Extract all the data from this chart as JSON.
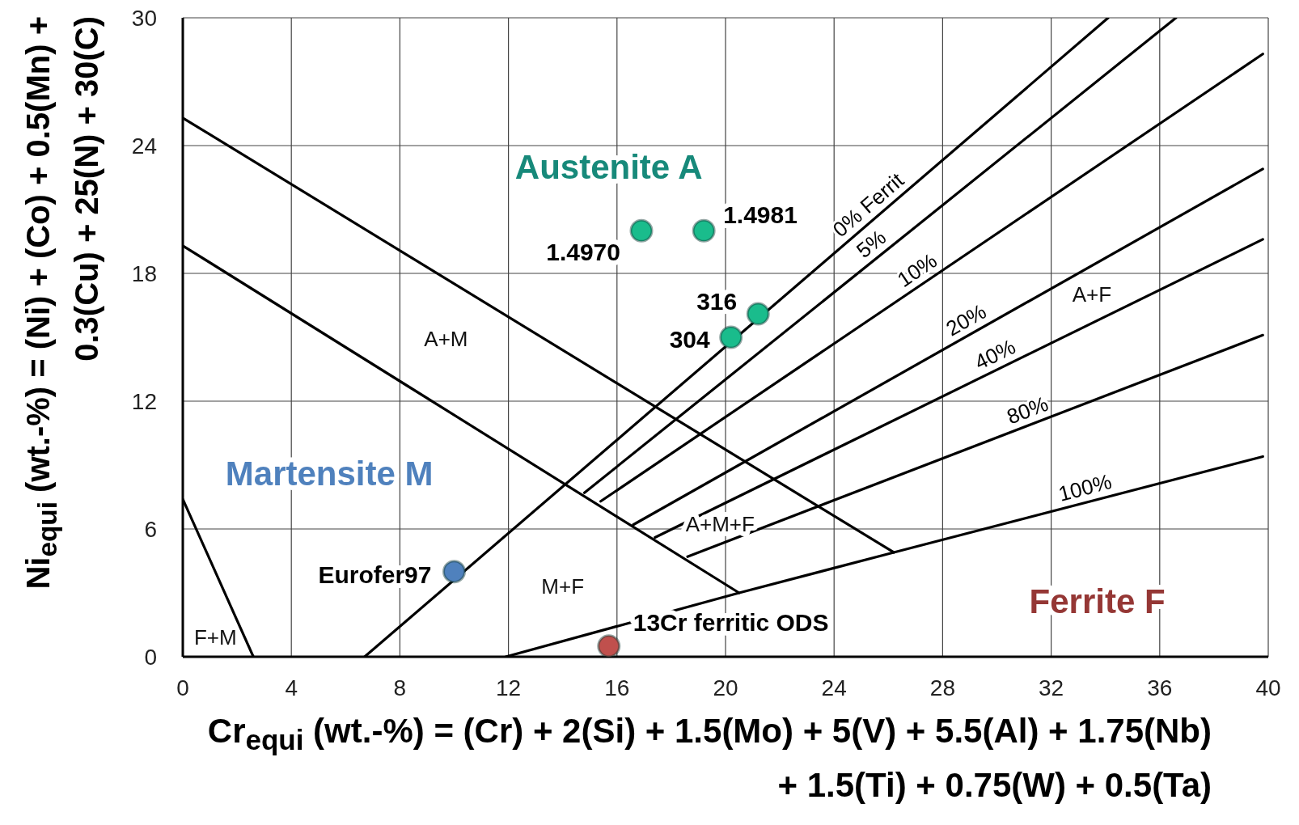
{
  "chart_data": {
    "type": "line",
    "xlabel": "Cr$_{equi}$ (wt.-%) =  (Cr) + 2(Si) + 1.5(Mo) + 5(V) + 5.5(Al) + 1.75(Nb) + 1.5(Ti) + 0.75(W) + 0.5(Ta)",
    "ylabel": "Ni$_{equi}$ (wt.-%) =  (Ni) + (Co) + 0.5(Mn) + 0.3(Cu) + 25(N) + 30(C)",
    "xlim": [
      0,
      40
    ],
    "xticks": [
      0,
      4,
      8,
      12,
      16,
      20,
      24,
      28,
      32,
      36,
      40
    ],
    "ylim": [
      0,
      30
    ],
    "yticks": [
      0,
      6,
      12,
      18,
      24,
      30
    ],
    "grid": true,
    "marker": "none",
    "line_style": "solid",
    "series": [
      {
        "color": "#000000",
        "x": [
          0,
          26.2
        ],
        "values": [
          25.3,
          4.9
        ]
      },
      {
        "color": "#000000",
        "x": [
          0,
          20.5
        ],
        "values": [
          19.3,
          3.0
        ]
      },
      {
        "color": "#000000",
        "x": [
          0,
          2.6
        ],
        "values": [
          7.4,
          0
        ]
      },
      {
        "name": "0% Ferrit",
        "color": "#000000",
        "x": [
          6.7,
          34.1
        ],
        "values": [
          0,
          30
        ]
      },
      {
        "name": "5%",
        "color": "#000000",
        "x": [
          14.8,
          36.6
        ],
        "values": [
          7.7,
          30
        ]
      },
      {
        "name": "10%",
        "color": "#000000",
        "x": [
          15.4,
          39.8
        ],
        "values": [
          7.3,
          28.3
        ]
      },
      {
        "name": "20%",
        "color": "#000000",
        "x": [
          16.6,
          39.8
        ],
        "values": [
          6.2,
          22.9
        ]
      },
      {
        "name": "40%",
        "color": "#000000",
        "x": [
          17.4,
          39.8
        ],
        "values": [
          5.6,
          19.6
        ]
      },
      {
        "name": "80%",
        "color": "#000000",
        "x": [
          18.6,
          39.8
        ],
        "values": [
          4.7,
          15.1
        ]
      },
      {
        "name": "100%",
        "color": "#000000",
        "x": [
          11.9,
          20.5,
          26.2,
          39.8
        ],
        "values": [
          0,
          3.0,
          4.9,
          9.4
        ]
      },
      {
        "type": "scatter",
        "marker": "circle",
        "x": [
          16.9,
          19.2,
          21.2,
          20.2,
          10.0,
          15.7
        ],
        "values": [
          20.0,
          20.0,
          16.1,
          15.0,
          4.0,
          0.5
        ],
        "colors": [
          "#1abc8c",
          "#1abc8c",
          "#1abc8c",
          "#1abc8c",
          "#4f81bd",
          "#c0504d"
        ]
      }
    ],
    "annotations": [
      {
        "text": "1.4970",
        "x": 16.9,
        "y": 20.0
      },
      {
        "text": "1.4981",
        "x": 19.2,
        "y": 20.0
      },
      {
        "text": "316",
        "x": 21.2,
        "y": 16.1
      },
      {
        "text": "304",
        "x": 20.2,
        "y": 15.0
      },
      {
        "text": "Eurofer97",
        "x": 10.0,
        "y": 4.0
      },
      {
        "text": "13Cr ferritic ODS",
        "x": 15.7,
        "y": 0.5
      },
      "A+F",
      "A+M",
      "M+F",
      "F+M",
      "A+M+F",
      "Austenite A",
      "Martensite M",
      "Ferrite F"
    ]
  }
}
